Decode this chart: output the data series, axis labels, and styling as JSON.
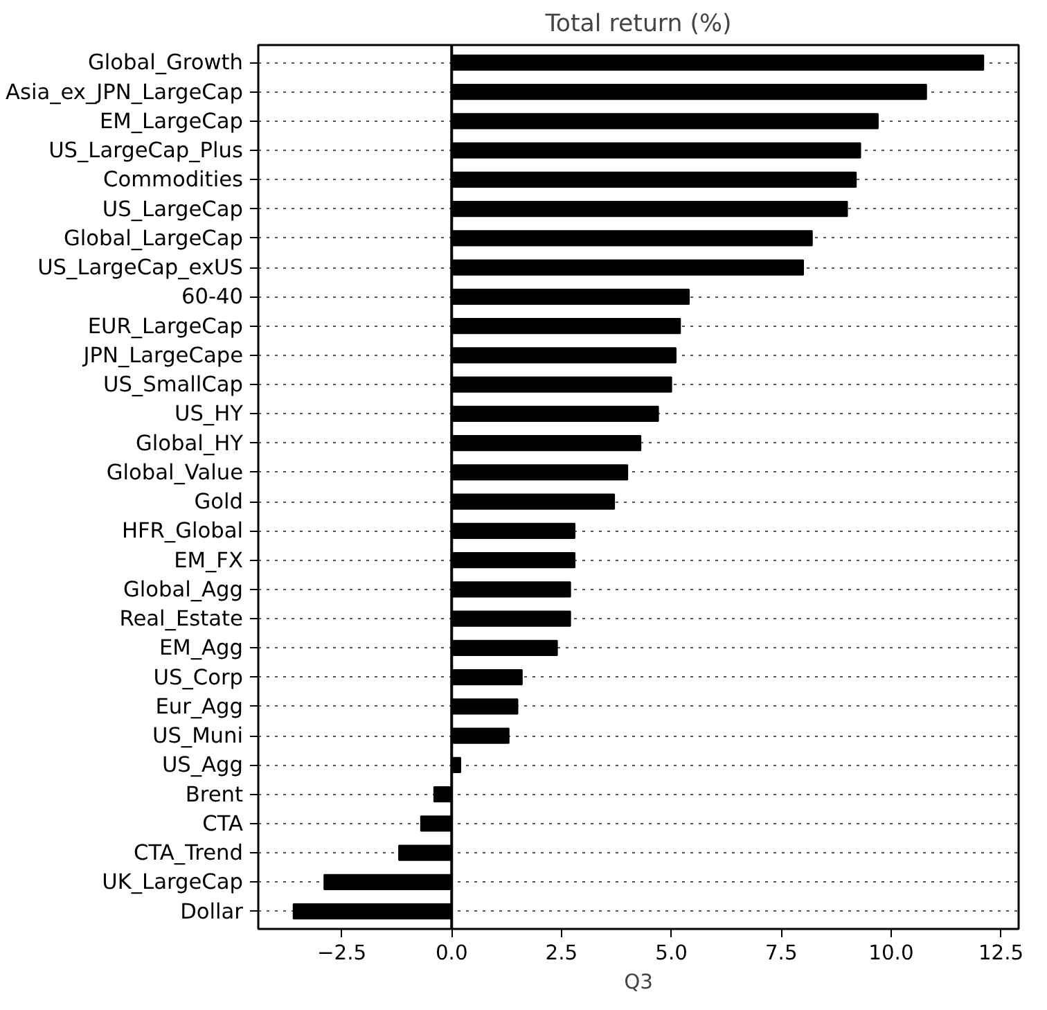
{
  "chart_data": {
    "type": "bar",
    "orientation": "horizontal",
    "title": "Total return (%)",
    "xlabel": "Q3",
    "categories": [
      "Global_Growth",
      "Asia_ex_JPN_LargeCap",
      "EM_LargeCap",
      "US_LargeCap_Plus",
      "Commodities",
      "US_LargeCap",
      "Global_LargeCap",
      "US_LargeCap_exUS",
      "60-40",
      "EUR_LargeCap",
      "JPN_LargeCape",
      "US_SmallCap",
      "US_HY",
      "Global_HY",
      "Global_Value",
      "Gold",
      "HFR_Global",
      "EM_FX",
      "Global_Agg",
      "Real_Estate",
      "EM_Agg",
      "US_Corp",
      "Eur_Agg",
      "US_Muni",
      "US_Agg",
      "Brent",
      "CTA",
      "CTA_Trend",
      "UK_LargeCap",
      "Dollar"
    ],
    "values": [
      12.1,
      10.8,
      9.7,
      9.3,
      9.2,
      9.0,
      8.2,
      8.0,
      5.4,
      5.2,
      5.1,
      5.0,
      4.7,
      4.3,
      4.0,
      3.7,
      2.8,
      2.8,
      2.7,
      2.7,
      2.4,
      1.6,
      1.5,
      1.3,
      0.2,
      -0.4,
      -0.7,
      -1.2,
      -2.9,
      -3.6
    ],
    "color": "#000000",
    "xlim": [
      -4.4,
      12.9
    ],
    "xticks": [
      {
        "value": -2.5,
        "label": "−2.5"
      },
      {
        "value": 0,
        "label": "0.0"
      },
      2.5,
      {
        "value": 5,
        "label": "5.0"
      },
      7.5,
      {
        "value": 10,
        "label": "10.0"
      },
      12.5
    ],
    "ref_lines": [
      {
        "axis": "x",
        "value": 0,
        "label": null,
        "color": "#000000"
      }
    ],
    "grid": "y",
    "line_style": "dotted"
  }
}
